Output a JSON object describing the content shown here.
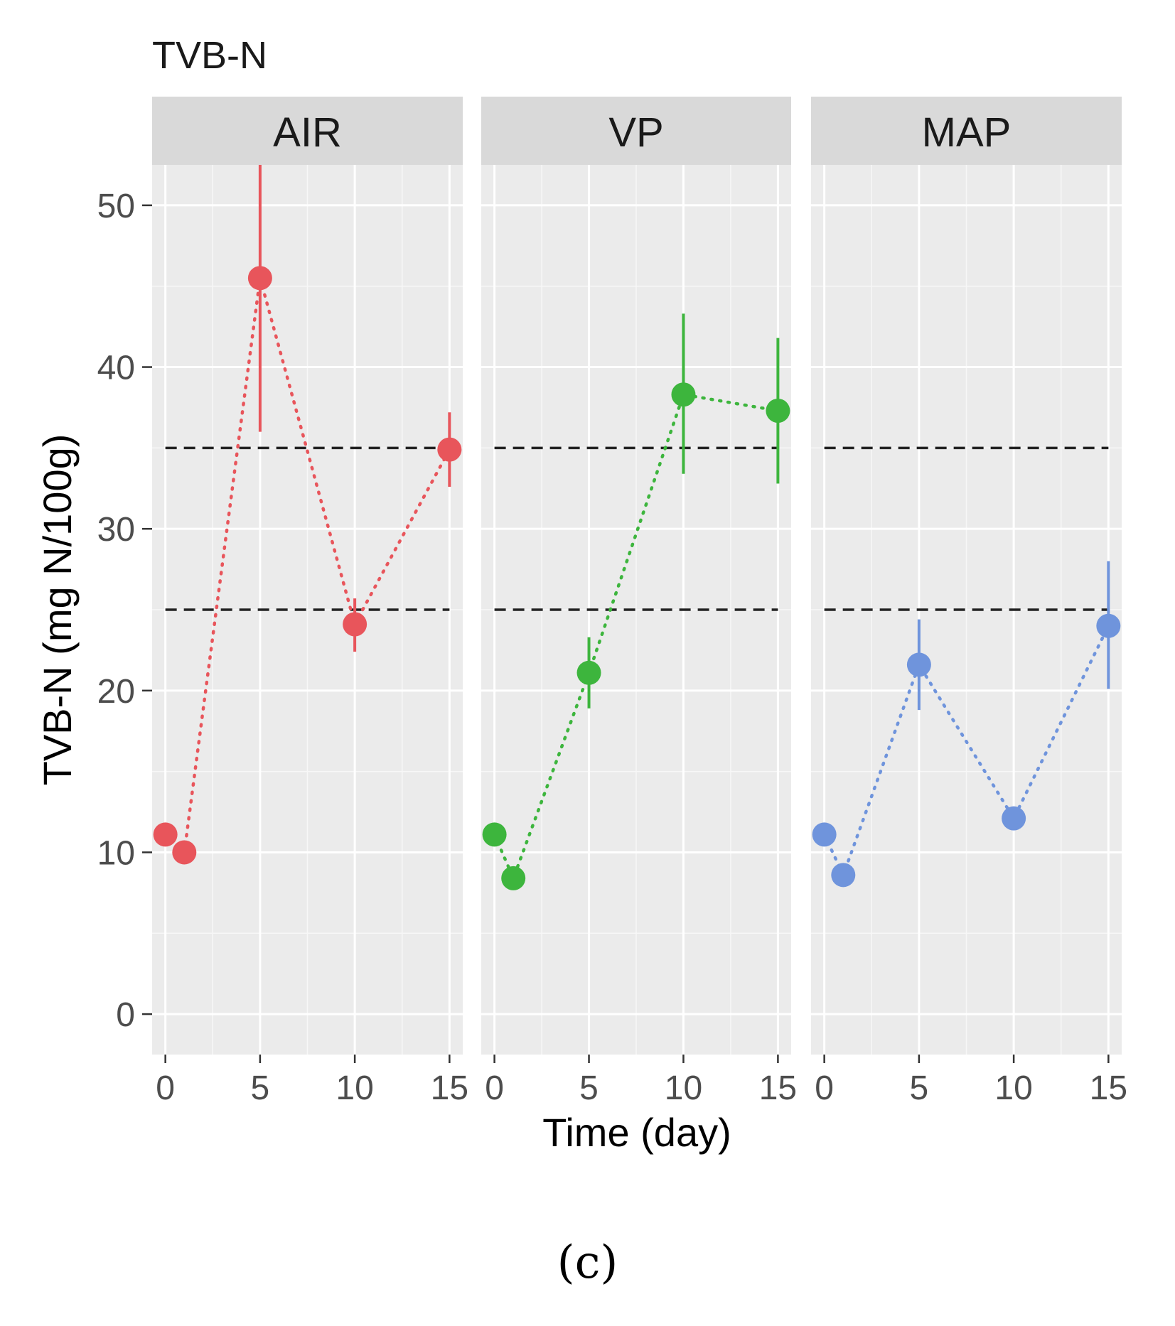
{
  "caption": "(c)",
  "chart_data": {
    "type": "scatter",
    "title": "TVB-N",
    "xlabel": "Time (day)",
    "ylabel": "TVB-N (mg N/100g)",
    "xlim": [
      -0.7,
      15.7
    ],
    "ylim": [
      -2.5,
      52.5
    ],
    "x_ticks": [
      0,
      5,
      10,
      15
    ],
    "y_ticks": [
      0,
      10,
      20,
      30,
      40,
      50
    ],
    "reference_lines": [
      25,
      35
    ],
    "panels": [
      {
        "name": "AIR",
        "color": "#E8555B",
        "points": [
          {
            "x": 0,
            "y": 11.1,
            "err_lo": null,
            "err_hi": null
          },
          {
            "x": 1,
            "y": 10.0,
            "err_lo": null,
            "err_hi": null
          },
          {
            "x": 5,
            "y": 45.5,
            "err_lo": 36.0,
            "err_hi": 52.5
          },
          {
            "x": 10,
            "y": 24.1,
            "err_lo": 22.4,
            "err_hi": 25.7
          },
          {
            "x": 15,
            "y": 34.9,
            "err_lo": 32.6,
            "err_hi": 37.2
          }
        ]
      },
      {
        "name": "VP",
        "color": "#3DB53D",
        "points": [
          {
            "x": 0,
            "y": 11.1,
            "err_lo": null,
            "err_hi": null
          },
          {
            "x": 1,
            "y": 8.4,
            "err_lo": null,
            "err_hi": null
          },
          {
            "x": 5,
            "y": 21.1,
            "err_lo": 18.9,
            "err_hi": 23.3
          },
          {
            "x": 10,
            "y": 38.3,
            "err_lo": 33.4,
            "err_hi": 43.3
          },
          {
            "x": 15,
            "y": 37.3,
            "err_lo": 32.8,
            "err_hi": 41.8
          }
        ]
      },
      {
        "name": "MAP",
        "color": "#6F94DC",
        "points": [
          {
            "x": 0,
            "y": 11.1,
            "err_lo": null,
            "err_hi": null
          },
          {
            "x": 1,
            "y": 8.6,
            "err_lo": null,
            "err_hi": null
          },
          {
            "x": 5,
            "y": 21.6,
            "err_lo": 18.8,
            "err_hi": 24.4
          },
          {
            "x": 10,
            "y": 12.1,
            "err_lo": null,
            "err_hi": null
          },
          {
            "x": 15,
            "y": 24.0,
            "err_lo": 20.1,
            "err_hi": 28.0
          }
        ]
      }
    ]
  }
}
